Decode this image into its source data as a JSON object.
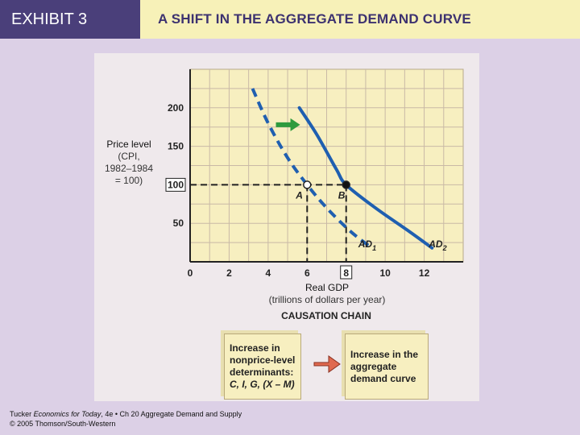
{
  "header": {
    "exhibit": "EXHIBIT 3",
    "title": "A SHIFT IN THE AGGREGATE DEMAND CURVE"
  },
  "chart_data": {
    "type": "line",
    "ylabel_line1": "Price level",
    "ylabel_line2": "(CPI,",
    "ylabel_line3": "1982–1984",
    "ylabel_line4": "= 100)",
    "xlabel_line1": "Real GDP",
    "xlabel_line2": "(trillions of dollars per year)",
    "xlim": [
      0,
      14
    ],
    "ylim": [
      0,
      250
    ],
    "x_ticks": [
      "0",
      "2",
      "4",
      "6",
      "8",
      "10",
      "12"
    ],
    "x_tick_values": [
      0,
      2,
      4,
      6,
      8,
      10,
      12
    ],
    "y_ticks": [
      "50",
      "100",
      "150",
      "200"
    ],
    "y_tick_values": [
      50,
      100,
      150,
      200
    ],
    "highlight_x": "8",
    "highlight_y": "100",
    "grid": true,
    "series": [
      {
        "name": "AD1",
        "label_main": "AD",
        "label_sub": "1",
        "style": "dashed",
        "color": "#1f5fb0",
        "x": [
          3.2,
          4.0,
          5.0,
          6.0,
          7.0,
          8.2,
          9.2
        ],
        "y": [
          225,
          180,
          135,
          100,
          70,
          40,
          20
        ]
      },
      {
        "name": "AD2",
        "label_main": "AD",
        "label_sub": "2",
        "style": "solid",
        "color": "#1f5fb0",
        "x": [
          5.6,
          6.5,
          7.5,
          8.0,
          9.5,
          11.2,
          12.4
        ],
        "y": [
          200,
          165,
          120,
          100,
          70,
          40,
          18
        ]
      }
    ],
    "points": [
      {
        "label": "A",
        "x": 6,
        "y": 100,
        "fill": "#ffffff"
      },
      {
        "label": "B",
        "x": 8,
        "y": 100,
        "fill": "#111111"
      }
    ],
    "shift_arrow_color": "#2e9b3e"
  },
  "causation": {
    "title": "CAUSATION CHAIN",
    "box1_lines": [
      "Increase in",
      "nonprice-level",
      "determinants:",
      "C, I, G, (X – M)"
    ],
    "box2_lines": [
      "Increase in the",
      "aggregate",
      "demand curve"
    ],
    "arrow_color": "#e06a50"
  },
  "footer": {
    "line1_pre": "Tucker ",
    "line1_book": "Economics for Today",
    "line1_post": ", 4e • Ch 20 Aggregate Demand and Supply",
    "line2": "© 2005 Thomson/South-Western"
  }
}
